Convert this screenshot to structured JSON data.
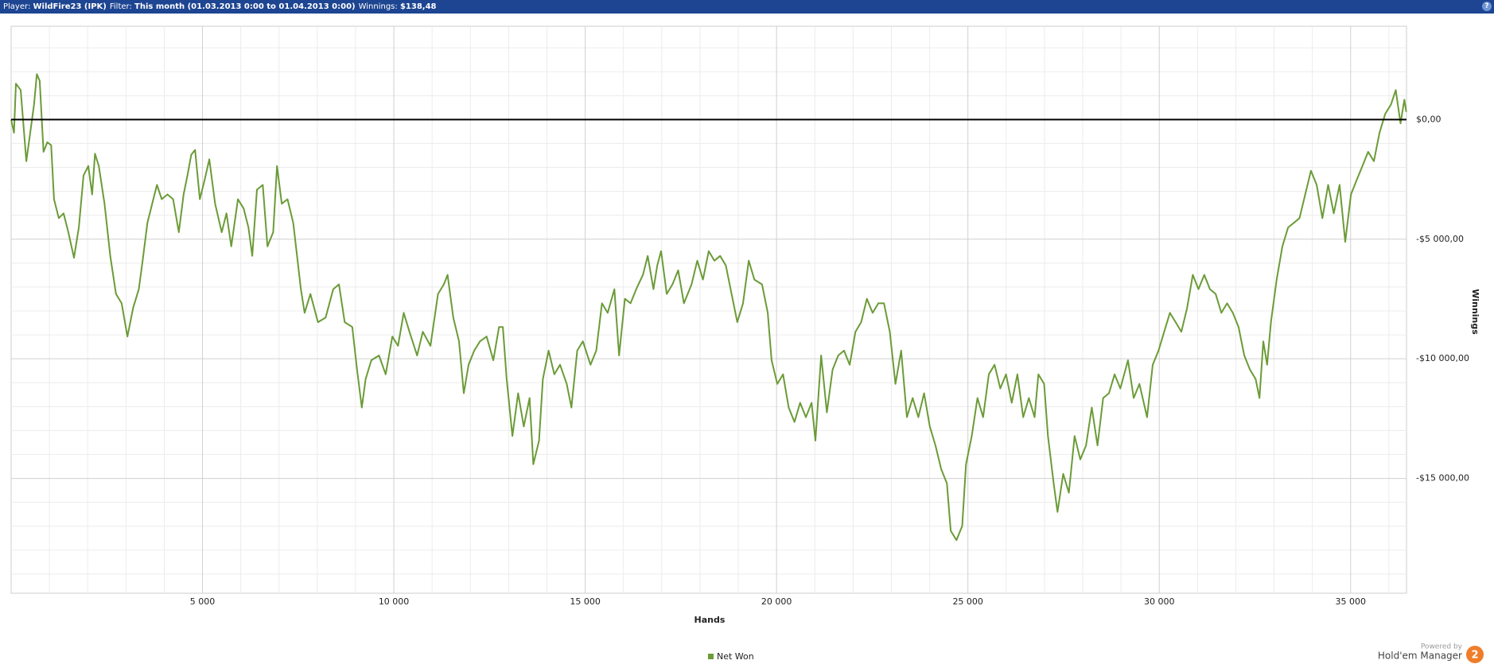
{
  "header": {
    "player_label": "Player:",
    "player": "WildFire23 (IPK)",
    "filter_label": "Filter:",
    "filter": "This month (01.03.2013 0:00 to 01.04.2013 0:00)",
    "winnings_label": "Winnings:",
    "winnings": "$138,48",
    "help": "?"
  },
  "branding": {
    "powered": "Powered by",
    "product": "Hold'em Manager",
    "badge": "2"
  },
  "chart_data": {
    "type": "line",
    "xlabel": "Hands",
    "ylabel": "Winnings",
    "zero_line": true,
    "grid": true,
    "legend": "bottom",
    "xlim": [
      0,
      36460
    ],
    "ylim": [
      -19800,
      3900
    ],
    "xticks": [
      {
        "value": 5000,
        "label": "5 000"
      },
      {
        "value": 10000,
        "label": "10 000"
      },
      {
        "value": 15000,
        "label": "15 000"
      },
      {
        "value": 20000,
        "label": "20 000"
      },
      {
        "value": 25000,
        "label": "25 000"
      },
      {
        "value": 30000,
        "label": "30 000"
      },
      {
        "value": 35000,
        "label": "35 000"
      }
    ],
    "yticks": [
      {
        "value": 0,
        "label": "$0,00"
      },
      {
        "value": -5000,
        "label": "-$5 000,00"
      },
      {
        "value": -10000,
        "label": "-$10 000,00"
      },
      {
        "value": -15000,
        "label": "-$15 000,00"
      }
    ],
    "x_minor_ticks": [
      1000,
      2000,
      3000,
      4000,
      6000,
      7000,
      8000,
      9000,
      11000,
      12000,
      13000,
      14000,
      16000,
      17000,
      18000,
      19000,
      21000,
      22000,
      23000,
      24000,
      26000,
      27000,
      28000,
      29000,
      31000,
      32000,
      33000,
      34000,
      36000
    ],
    "y_minor_ticks": [
      3000,
      2000,
      1000,
      -1000,
      -2000,
      -3000,
      -4000,
      -6000,
      -7000,
      -8000,
      -9000,
      -11000,
      -12000,
      -13000,
      -14000,
      -16000,
      -17000,
      -18000,
      -19000
    ],
    "x": [
      0,
      75,
      125,
      249,
      398,
      498,
      598,
      672,
      747,
      847,
      946,
      1046,
      1121,
      1245,
      1370,
      1494,
      1643,
      1768,
      1892,
      2017,
      2117,
      2191,
      2291,
      2440,
      2590,
      2739,
      2888,
      3038,
      3187,
      3337,
      3436,
      3561,
      3685,
      3810,
      3934,
      4084,
      4233,
      4382,
      4507,
      4607,
      4706,
      4806,
      4930,
      5055,
      5179,
      5329,
      5503,
      5627,
      5752,
      5926,
      6076,
      6200,
      6300,
      6424,
      6574,
      6698,
      6848,
      6947,
      7072,
      7221,
      7370,
      7470,
      7570,
      7669,
      7819,
      8018,
      8217,
      8416,
      8566,
      8715,
      8914,
      9039,
      9163,
      9263,
      9412,
      9611,
      9786,
      9960,
      10109,
      10259,
      10408,
      10607,
      10757,
      10956,
      11155,
      11305,
      11404,
      11554,
      11703,
      11828,
      11952,
      12101,
      12251,
      12425,
      12599,
      12749,
      12848,
      12948,
      13097,
      13247,
      13396,
      13546,
      13645,
      13795,
      13894,
      14044,
      14193,
      14342,
      14517,
      14641,
      14791,
      14940,
      15139,
      15289,
      15438,
      15587,
      15762,
      15886,
      16036,
      16185,
      16334,
      16509,
      16633,
      16783,
      16882,
      16982,
      17131,
      17281,
      17430,
      17579,
      17779,
      17928,
      18077,
      18227,
      18376,
      18526,
      18675,
      18824,
      18974,
      19123,
      19273,
      19422,
      19621,
      19771,
      19870,
      20020,
      20169,
      20318,
      20468,
      20617,
      20767,
      20916,
      21016,
      21165,
      21314,
      21464,
      21613,
      21763,
      21912,
      22061,
      22211,
      22360,
      22510,
      22659,
      22808,
      22958,
      23107,
      23257,
      23406,
      23555,
      23705,
      23854,
      24004,
      24153,
      24302,
      24452,
      24551,
      24701,
      24850,
      24950,
      25099,
      25249,
      25398,
      25547,
      25697,
      25846,
      25996,
      26145,
      26294,
      26444,
      26593,
      26743,
      26842,
      26991,
      27091,
      27241,
      27340,
      27490,
      27639,
      27788,
      27938,
      28087,
      28237,
      28386,
      28535,
      28685,
      28834,
      28984,
      29183,
      29332,
      29482,
      29681,
      29830,
      29980,
      30129,
      30278,
      30428,
      30577,
      30727,
      30876,
      31025,
      31175,
      31324,
      31474,
      31623,
      31772,
      31922,
      32071,
      32221,
      32370,
      32519,
      32619,
      32719,
      32818,
      32918,
      33067,
      33217,
      33366,
      33515,
      33665,
      33814,
      33964,
      34113,
      34262,
      34412,
      34561,
      34711,
      34860,
      35009,
      35159,
      35308,
      35458,
      35607,
      35756,
      35906,
      36055,
      36180,
      36304,
      36404,
      36453
    ],
    "series": [
      {
        "name": "Net Won",
        "color": "#6b9b37",
        "values": [
          0,
          -550,
          1500,
          1230,
          -1740,
          -550,
          630,
          1900,
          1620,
          -1350,
          -950,
          -1070,
          -3330,
          -4120,
          -3920,
          -4710,
          -5780,
          -4510,
          -2340,
          -1940,
          -3130,
          -1430,
          -1940,
          -3520,
          -5700,
          -7290,
          -7680,
          -9070,
          -7880,
          -7090,
          -5900,
          -4320,
          -3520,
          -2730,
          -3330,
          -3130,
          -3330,
          -4710,
          -3130,
          -2340,
          -1470,
          -1270,
          -3330,
          -2530,
          -1660,
          -3520,
          -4710,
          -3920,
          -5300,
          -3330,
          -3720,
          -4510,
          -5700,
          -2930,
          -2730,
          -5300,
          -4710,
          -1940,
          -3520,
          -3330,
          -4320,
          -5700,
          -7090,
          -8080,
          -7290,
          -8470,
          -8280,
          -7090,
          -6890,
          -8470,
          -8670,
          -10450,
          -12040,
          -10850,
          -10060,
          -9860,
          -10650,
          -9070,
          -9460,
          -8080,
          -8870,
          -9860,
          -8870,
          -9460,
          -7290,
          -6890,
          -6490,
          -8280,
          -9270,
          -11440,
          -10250,
          -9660,
          -9270,
          -9070,
          -10060,
          -8670,
          -8670,
          -10850,
          -13230,
          -11440,
          -12830,
          -11640,
          -14410,
          -13420,
          -10850,
          -9660,
          -10650,
          -10250,
          -11050,
          -12040,
          -9660,
          -9270,
          -10250,
          -9660,
          -7680,
          -8080,
          -7090,
          -9860,
          -7490,
          -7680,
          -7090,
          -6490,
          -5700,
          -7090,
          -6100,
          -5500,
          -7290,
          -6890,
          -6300,
          -7680,
          -6890,
          -5900,
          -6690,
          -5500,
          -5900,
          -5700,
          -6100,
          -7290,
          -8470,
          -7680,
          -5900,
          -6690,
          -6890,
          -8080,
          -10060,
          -11050,
          -10650,
          -12040,
          -12640,
          -11840,
          -12440,
          -11840,
          -13420,
          -9860,
          -12240,
          -10450,
          -9860,
          -9660,
          -10250,
          -8870,
          -8470,
          -7490,
          -8080,
          -7680,
          -7680,
          -8870,
          -11050,
          -9660,
          -12440,
          -11640,
          -12440,
          -11440,
          -12830,
          -13620,
          -14610,
          -15210,
          -17190,
          -17580,
          -16990,
          -14410,
          -13230,
          -11640,
          -12440,
          -10650,
          -10250,
          -11240,
          -10650,
          -11840,
          -10650,
          -12440,
          -11640,
          -12440,
          -10650,
          -11050,
          -13230,
          -15210,
          -16400,
          -14810,
          -15600,
          -13230,
          -14210,
          -13620,
          -12040,
          -13620,
          -11640,
          -11440,
          -10650,
          -11240,
          -10060,
          -11640,
          -11050,
          -12440,
          -10250,
          -9660,
          -8870,
          -8080,
          -8470,
          -8870,
          -7880,
          -6490,
          -7090,
          -6490,
          -7090,
          -7290,
          -8080,
          -7680,
          -8080,
          -8670,
          -9860,
          -10450,
          -10850,
          -11640,
          -9270,
          -10250,
          -8470,
          -6690,
          -5300,
          -4510,
          -4320,
          -4120,
          -3130,
          -2140,
          -2730,
          -4120,
          -2730,
          -3920,
          -2730,
          -5110,
          -3130,
          -2530,
          -1940,
          -1350,
          -1740,
          -550,
          240,
          630,
          1230,
          -160,
          830,
          320
        ]
      }
    ]
  }
}
